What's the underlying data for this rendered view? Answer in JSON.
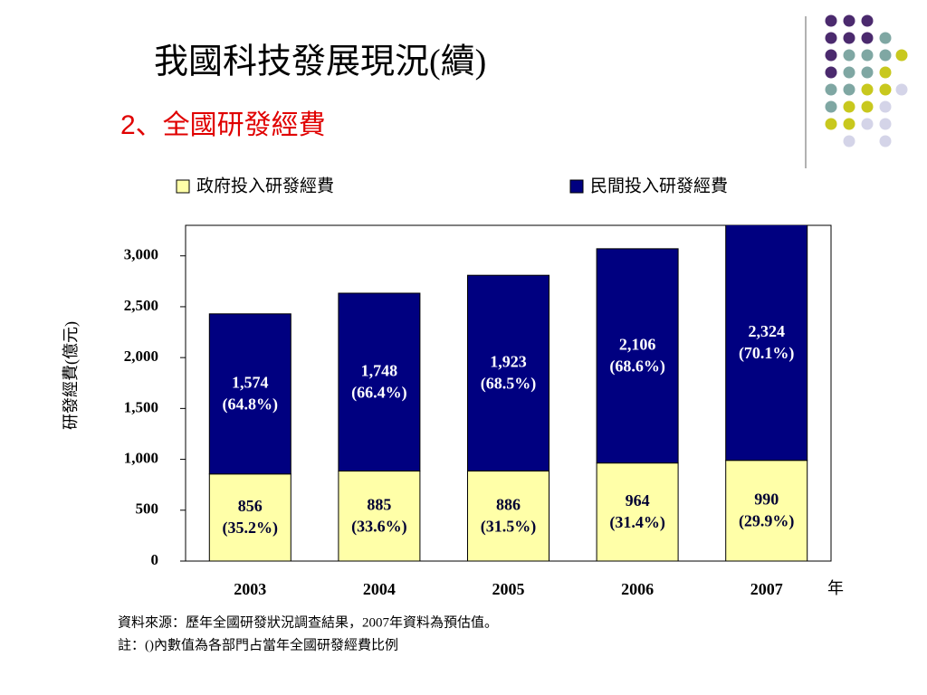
{
  "title": "我國科技發展現況(續)",
  "subtitle": "2、全國研發經費",
  "chart_data": {
    "type": "stacked_bar",
    "categories": [
      "2003",
      "2004",
      "2005",
      "2006",
      "2007"
    ],
    "x_unit": "年",
    "ylabel": "研發經費(億元)",
    "ylim": [
      0,
      3300
    ],
    "yticks": [
      0,
      500,
      {
        "value": 1000,
        "label": "1,000"
      },
      {
        "value": 1500,
        "label": "1,500"
      },
      {
        "value": 2000,
        "label": "2,000"
      },
      {
        "value": 2500,
        "label": "2,500"
      },
      {
        "value": 3000,
        "label": "3,000"
      }
    ],
    "legend": "top",
    "series": [
      {
        "name": "政府投入研發經費",
        "color": "#ffffa8",
        "label_color": "#000033",
        "values": [
          856,
          885,
          886,
          964,
          990
        ],
        "shares": [
          "(35.2%)",
          "(33.6%)",
          "(31.5%)",
          "(31.4%)",
          "(29.9%)"
        ]
      },
      {
        "name": "民間投入研發經費",
        "color": "#000080",
        "label_color": "#ffffff",
        "values": [
          1574,
          1748,
          1923,
          2106,
          2324
        ],
        "value_labels": [
          "1,574",
          "1,748",
          "1,923",
          "2,106",
          "2,324"
        ],
        "shares": [
          "(64.8%)",
          "(66.4%)",
          "(68.5%)",
          "(68.6%)",
          "(70.1%)"
        ]
      }
    ]
  },
  "notes": [
    "資料來源：歷年全國研發狀況調查結果，2007年資料為預估值。",
    "註：()內數值為各部門占當年全國研發經費比例"
  ]
}
